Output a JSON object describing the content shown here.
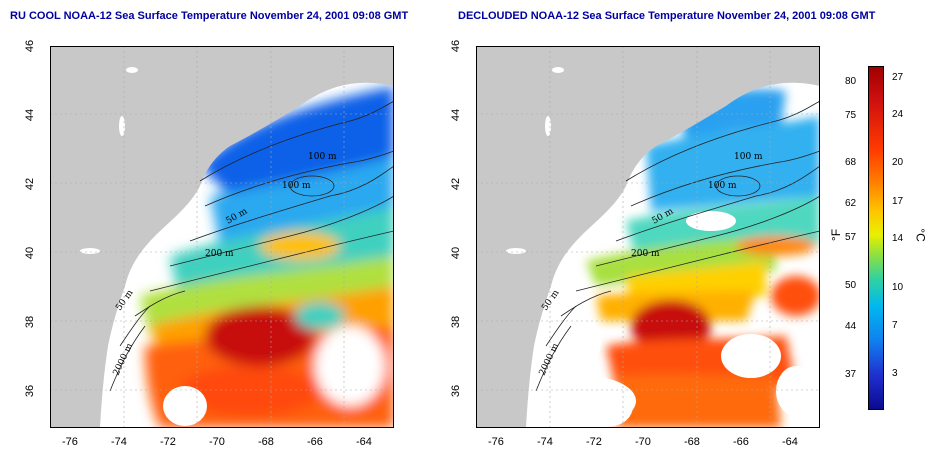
{
  "titles": {
    "left": "RU COOL NOAA-12 Sea Surface Temperature November 24, 2001 09:08 GMT",
    "right": "DECLOUDED NOAA-12 Sea Surface Temperature November 24, 2001 09:08 GMT"
  },
  "axes": {
    "lat_ticks": [
      "46",
      "44",
      "42",
      "40",
      "38",
      "36"
    ],
    "lon_ticks": [
      "-76",
      "-74",
      "-72",
      "-70",
      "-68",
      "-66",
      "-64"
    ]
  },
  "contours_left": [
    "100 m",
    "100 m",
    "50 m",
    "200 m",
    "50 m",
    "2000 m"
  ],
  "contours_right": [
    "100 m",
    "100 m",
    "50 m",
    "200 m",
    "50 m",
    "2000 m"
  ],
  "colorbar": {
    "unit_f": "°F",
    "unit_c": "°C",
    "fahrenheit": [
      "80",
      "75",
      "68",
      "62",
      "57",
      "50",
      "44",
      "37"
    ],
    "celsius": [
      "27",
      "24",
      "20",
      "17",
      "14",
      "10",
      "7",
      "3"
    ]
  },
  "colors": {
    "land": "#c8c8c8",
    "title": "#0000a0"
  }
}
